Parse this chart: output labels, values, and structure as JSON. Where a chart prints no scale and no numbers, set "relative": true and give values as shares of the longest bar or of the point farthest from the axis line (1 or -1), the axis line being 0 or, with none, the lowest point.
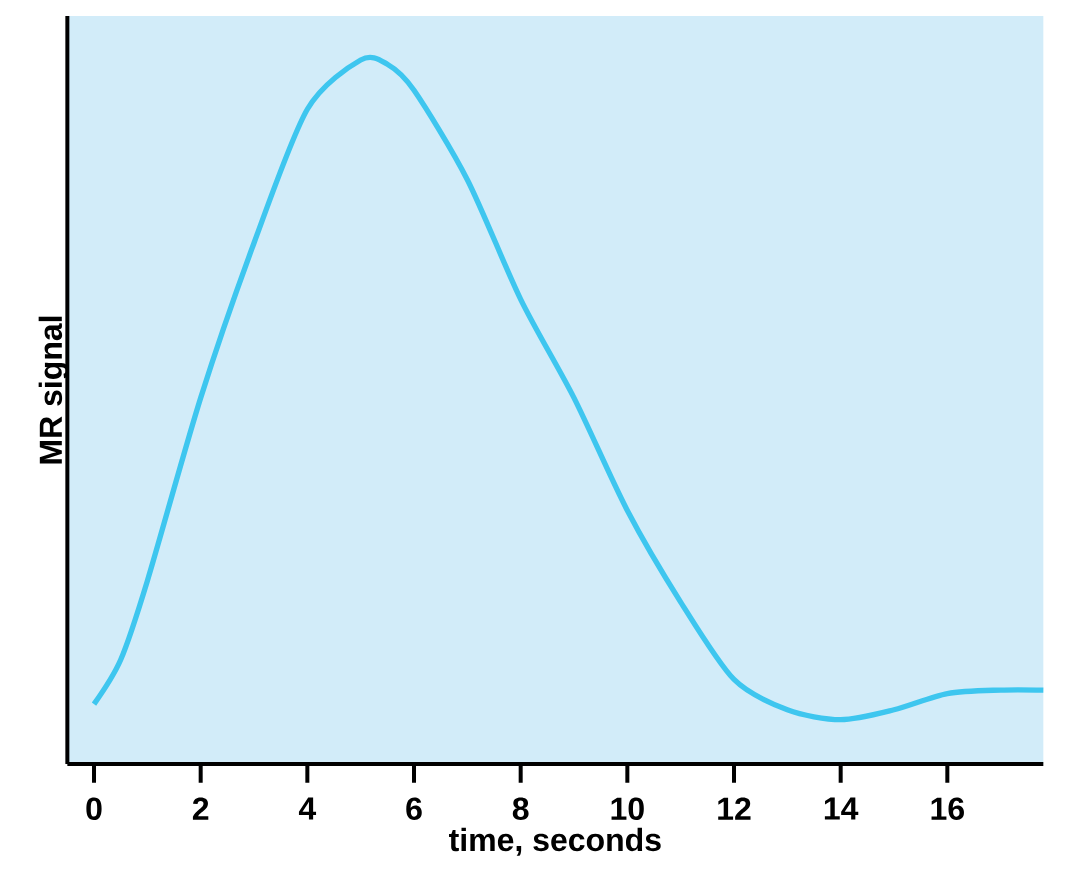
{
  "chart_data": {
    "type": "line",
    "xlabel": "time, seconds",
    "ylabel": "MR signal",
    "relative": true,
    "x": [
      0,
      0.5,
      1,
      2,
      3,
      4,
      5,
      5.5,
      6,
      7,
      8,
      9,
      10,
      11,
      12,
      13,
      14,
      15,
      16,
      17,
      17.8
    ],
    "series": [
      {
        "color": "#3ec6ef",
        "values": [
          0.085,
          0.148,
          0.26,
          0.52,
          0.74,
          0.93,
          1.0,
          0.994,
          0.957,
          0.83,
          0.66,
          0.52,
          0.36,
          0.23,
          0.12,
          0.077,
          0.063,
          0.077,
          0.1,
          0.105,
          0.105
        ]
      }
    ],
    "xlim": [
      -0.5,
      17.8
    ],
    "xticks": [
      0,
      2,
      4,
      6,
      8,
      10,
      12,
      14,
      16
    ]
  }
}
